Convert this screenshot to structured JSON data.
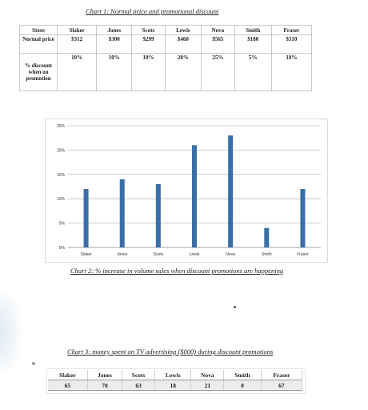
{
  "captions": {
    "chart1": "Chart 1: Normal price and promotional discount",
    "chart2": "Chart 2: % increase in volume sales when discount promotions are happening",
    "chart3": "Chart 3: money spent on TV advertising ($000) during discount promotions"
  },
  "table1": {
    "header": [
      "Store",
      "Slaker",
      "Jones",
      "Scots",
      "Lewis",
      "Nova",
      "Smith",
      "Fraser"
    ],
    "row1": {
      "label": "Normal price",
      "values": [
        "$312",
        "$300",
        "$299",
        "$460",
        "$565",
        "$180",
        "$310"
      ]
    },
    "row2": {
      "label": "% discount when on promotion",
      "values": [
        "10%",
        "10%",
        "10%",
        "20%",
        "25%",
        "5%",
        "10%"
      ]
    }
  },
  "table3": {
    "header": [
      "Slaker",
      "Jones",
      "Scots",
      "Lewis",
      "Nova",
      "Smith",
      "Fraser"
    ],
    "values": [
      "65",
      "70",
      "63",
      "18",
      "21",
      "0",
      "67"
    ]
  },
  "chart_data": {
    "type": "bar",
    "categories": [
      "Slaker",
      "Jones",
      "Scots",
      "Lewis",
      "Nova",
      "Smith",
      "Fraser"
    ],
    "values": [
      12,
      14,
      13,
      21,
      23,
      4,
      12
    ],
    "value_format": "%",
    "ylim": [
      0,
      25
    ],
    "yticks": [
      "0%",
      "5%",
      "10%",
      "15%",
      "20%",
      "25%"
    ],
    "grid": true,
    "bar_color": "#3a6ea5"
  }
}
